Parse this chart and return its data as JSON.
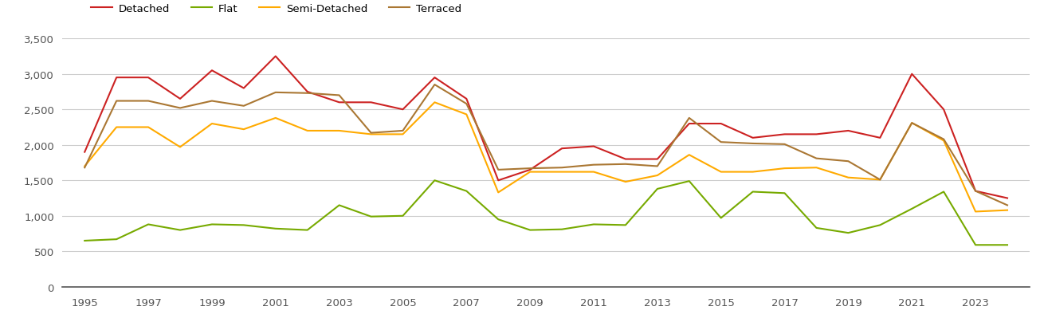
{
  "years": [
    1995,
    1996,
    1997,
    1998,
    1999,
    2000,
    2001,
    2002,
    2003,
    2004,
    2005,
    2006,
    2007,
    2008,
    2009,
    2010,
    2011,
    2012,
    2013,
    2014,
    2015,
    2016,
    2017,
    2018,
    2019,
    2020,
    2021,
    2022,
    2023,
    2024
  ],
  "detached": [
    1900,
    2950,
    2950,
    2650,
    3050,
    2800,
    3250,
    2750,
    2600,
    2600,
    2500,
    2950,
    2650,
    1500,
    1650,
    1950,
    1980,
    1800,
    1800,
    2300,
    2300,
    2100,
    2150,
    2150,
    2200,
    2100,
    3000,
    2500,
    1350,
    1250
  ],
  "flat": [
    650,
    670,
    880,
    800,
    880,
    870,
    820,
    800,
    1150,
    990,
    1000,
    1500,
    1350,
    950,
    800,
    810,
    880,
    870,
    1380,
    1490,
    970,
    1340,
    1320,
    830,
    760,
    870,
    1100,
    1340,
    590,
    590
  ],
  "semi_detached": [
    1700,
    2250,
    2250,
    1970,
    2300,
    2220,
    2380,
    2200,
    2200,
    2150,
    2150,
    2600,
    2430,
    1330,
    1620,
    1620,
    1620,
    1480,
    1570,
    1860,
    1620,
    1620,
    1670,
    1680,
    1540,
    1510,
    2310,
    2060,
    1060,
    1080
  ],
  "terraced": [
    1680,
    2620,
    2620,
    2520,
    2620,
    2550,
    2740,
    2730,
    2700,
    2170,
    2200,
    2850,
    2580,
    1650,
    1670,
    1680,
    1720,
    1730,
    1700,
    2380,
    2040,
    2020,
    2010,
    1810,
    1770,
    1510,
    2310,
    2080,
    1350,
    1150
  ],
  "colors": {
    "detached": "#cc2222",
    "flat": "#77aa00",
    "semi_detached": "#ffaa00",
    "terraced": "#aa7733"
  },
  "ylim": [
    0,
    3500
  ],
  "yticks": [
    0,
    500,
    1000,
    1500,
    2000,
    2500,
    3000,
    3500
  ],
  "xticks": [
    1995,
    1997,
    1999,
    2001,
    2003,
    2005,
    2007,
    2009,
    2011,
    2013,
    2015,
    2017,
    2019,
    2021,
    2023
  ],
  "background_color": "#ffffff",
  "grid_color": "#cccccc",
  "linewidth": 1.5,
  "legend_labels": [
    "Detached",
    "Flat",
    "Semi-Detached",
    "Terraced"
  ]
}
